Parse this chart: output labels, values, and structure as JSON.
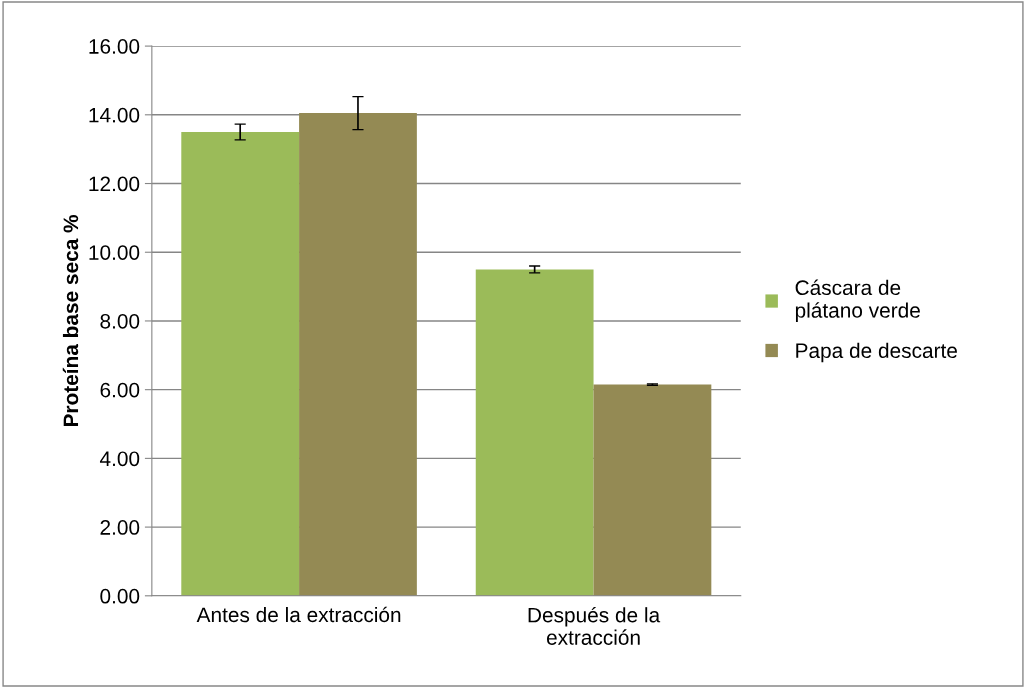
{
  "chart_data": {
    "type": "bar",
    "ylabel": "Proteína base seca %",
    "categories": [
      "Antes de la extracción",
      "Después de la\nextracción"
    ],
    "series": [
      {
        "name": "Cáscara de\nplátano verde",
        "color": "#9bbb59",
        "values": [
          13.5,
          9.5
        ],
        "errors": [
          0.23,
          0.1
        ]
      },
      {
        "name": "Papa de descarte",
        "color": "#948a54",
        "values": [
          14.05,
          6.15
        ],
        "errors": [
          0.48,
          0.02
        ]
      }
    ],
    "ylim": [
      0,
      16
    ],
    "yticks": [
      {
        "value": 0,
        "label": "0.00"
      },
      {
        "value": 2,
        "label": "2.00"
      },
      {
        "value": 4,
        "label": "4.00"
      },
      {
        "value": 6,
        "label": "6.00"
      },
      {
        "value": 8,
        "label": "8.00"
      },
      {
        "value": 10,
        "label": "10.00"
      },
      {
        "value": 12,
        "label": "12.00"
      },
      {
        "value": 14,
        "label": "14.00"
      },
      {
        "value": 16,
        "label": "16.00"
      }
    ],
    "grid": "y",
    "legend": "right"
  }
}
